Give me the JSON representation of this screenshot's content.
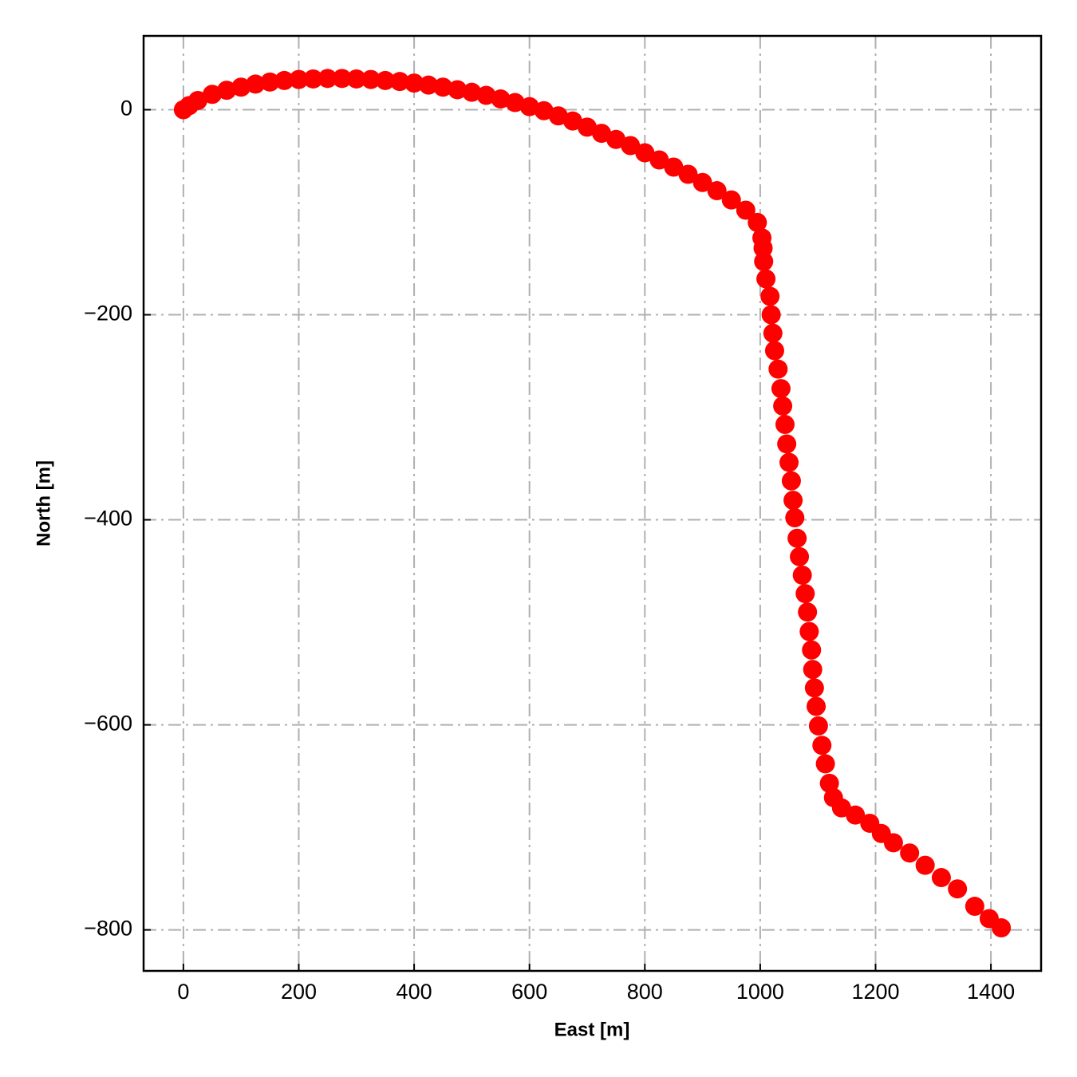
{
  "chart_data": {
    "type": "scatter",
    "xlabel": "East [m]",
    "ylabel": "North [m]",
    "color": "#ff0000",
    "grid": true,
    "xlim": [
      -69,
      1487
    ],
    "ylim": [
      -840,
      72
    ],
    "xticks": [
      0,
      200,
      400,
      600,
      800,
      1000,
      1200,
      1400
    ],
    "yticks": [
      {
        "value": -800,
        "label": "−800"
      },
      {
        "value": -600,
        "label": "−600"
      },
      {
        "value": -400,
        "label": "−400"
      },
      {
        "value": -200,
        "label": "−200"
      },
      0
    ],
    "x": [
      0,
      10,
      25,
      50,
      75,
      100,
      125,
      150,
      175,
      200,
      225,
      250,
      275,
      300,
      325,
      350,
      375,
      400,
      425,
      450,
      475,
      500,
      525,
      550,
      575,
      600,
      625,
      650,
      675,
      700,
      725,
      750,
      775,
      800,
      825,
      850,
      875,
      900,
      925,
      950,
      975,
      995,
      1003,
      1005,
      1006,
      1010,
      1017,
      1019,
      1022,
      1025,
      1031,
      1036,
      1039,
      1043,
      1046,
      1050,
      1054,
      1057,
      1060,
      1064,
      1068,
      1073,
      1078,
      1082,
      1085,
      1089,
      1091,
      1094,
      1097,
      1101,
      1107,
      1113,
      1120,
      1127,
      1141,
      1165,
      1190,
      1210,
      1231,
      1259,
      1286,
      1314,
      1342,
      1372,
      1397,
      1418
    ],
    "values": [
      0,
      4,
      9,
      15,
      19,
      22,
      25,
      27,
      28.5,
      29.5,
      30,
      30.5,
      30.5,
      30,
      29.5,
      28.5,
      27.5,
      26,
      24,
      22,
      19.5,
      17,
      14,
      10.5,
      7,
      3,
      -1,
      -6,
      -11,
      -17,
      -23,
      -29,
      -35,
      -42,
      -49,
      -56,
      -63,
      -71,
      -79,
      -88,
      -98,
      -110,
      -125,
      -135,
      -148,
      -165,
      -182,
      -200,
      -218,
      -235,
      -253,
      -272,
      -289,
      -307,
      -326,
      -344,
      -362,
      -381,
      -398,
      -418,
      -436,
      -454,
      -472,
      -490,
      -509,
      -527,
      -546,
      -564,
      -582,
      -601,
      -620,
      -638,
      -657,
      -671,
      -681,
      -688,
      -696,
      -706,
      -715,
      -725,
      -737,
      -749,
      -760,
      -777,
      -789,
      -798
    ]
  }
}
